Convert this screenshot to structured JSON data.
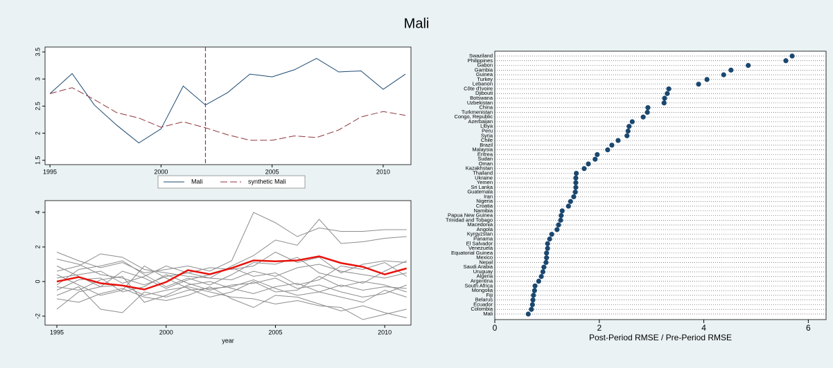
{
  "title": "Mali",
  "chart_data": [
    {
      "type": "line",
      "x": [
        1995,
        1996,
        1997,
        1998,
        1999,
        2000,
        2001,
        2002,
        2003,
        2004,
        2005,
        2006,
        2007,
        2008,
        2009,
        2010,
        2011
      ],
      "series": [
        {
          "name": "Mali",
          "color": "#1a476f",
          "dash": false,
          "values": [
            2.73,
            3.1,
            2.52,
            2.15,
            1.82,
            2.08,
            2.87,
            2.52,
            2.75,
            3.09,
            3.04,
            3.17,
            3.38,
            3.13,
            3.15,
            2.81,
            3.09
          ]
        },
        {
          "name": "synthetic Mali",
          "color": "#90353b",
          "dash": true,
          "values": [
            2.73,
            2.84,
            2.62,
            2.38,
            2.28,
            2.11,
            2.21,
            2.1,
            1.97,
            1.87,
            1.87,
            1.95,
            1.92,
            2.06,
            2.3,
            2.4,
            2.33
          ]
        }
      ],
      "vline": 2002,
      "vline_color": "#90353b",
      "xlim": [
        1994.78,
        2011.25
      ],
      "xticks": [
        1995,
        2000,
        2005,
        2010
      ],
      "ylim": [
        1.42,
        3.59
      ],
      "yticks": [
        1.5,
        2,
        2.5,
        3,
        3.5
      ],
      "legend": "bottom",
      "grid": false
    },
    {
      "type": "line",
      "x_label": "year",
      "x": [
        1995,
        1996,
        1997,
        1998,
        1999,
        2000,
        2001,
        2002,
        2003,
        2004,
        2005,
        2006,
        2007,
        2008,
        2009,
        2010,
        2011
      ],
      "series": [
        {
          "color": "#8c8c8c",
          "values": [
            1.7,
            1.2,
            0.8,
            1.1,
            0.5,
            0.7,
            0.9,
            0.6,
            1.2,
            4.0,
            3.4,
            2.6,
            3.1,
            2.9,
            2.9,
            3.0,
            3.0
          ]
        },
        {
          "color": "#8c8c8c",
          "values": [
            -1.6,
            -0.6,
            -0.3,
            -0.2,
            -0.8,
            -0.5,
            -0.3,
            -0.6,
            -0.9,
            -1.0,
            -1.3,
            -1.1,
            -1.4,
            -1.5,
            -2.2,
            -1.9,
            -1.6
          ]
        },
        {
          "color": "#8c8c8c",
          "values": [
            0.6,
            0.9,
            1.6,
            1.4,
            0.7,
            0.5,
            0.3,
            0.2,
            0.9,
            1.5,
            2.4,
            2.1,
            3.6,
            2.2,
            2.3,
            2.5,
            2.6
          ]
        },
        {
          "color": "#8c8c8c",
          "values": [
            -0.8,
            -0.3,
            -1.6,
            -1.8,
            -0.6,
            -0.9,
            -0.5,
            -0.4,
            -0.3,
            0.1,
            -0.4,
            -0.8,
            -0.6,
            -0.9,
            -1.2,
            -0.5,
            -0.9
          ]
        },
        {
          "color": "#8c8c8c",
          "values": [
            1.3,
            1.0,
            0.4,
            0.2,
            -0.2,
            0.3,
            0.5,
            0.8,
            0.7,
            0.9,
            1.7,
            1.1,
            1.4,
            0.5,
            1.0,
            1.2,
            1.1
          ]
        },
        {
          "color": "#8c8c8c",
          "values": [
            -0.3,
            -0.5,
            0.1,
            0.3,
            -1.2,
            -0.8,
            -0.2,
            0.0,
            -0.4,
            -0.7,
            -0.3,
            -0.1,
            -0.6,
            -0.2,
            -0.5,
            -0.3,
            -0.4
          ]
        },
        {
          "color": "#8c8c8c",
          "values": [
            0.2,
            0.4,
            0.6,
            -0.1,
            0.3,
            0.9,
            0.5,
            0.2,
            0.1,
            0.6,
            0.3,
            0.8,
            1.0,
            0.6,
            0.4,
            0.2,
            0.5
          ]
        },
        {
          "color": "#8c8c8c",
          "values": [
            -1.0,
            -1.2,
            -0.7,
            -0.4,
            -0.9,
            -1.1,
            -0.8,
            -0.3,
            -1.0,
            -1.5,
            -0.8,
            -0.9,
            -1.3,
            -1.7,
            -1.4,
            -1.8,
            -2.1
          ]
        },
        {
          "color": "#8c8c8c",
          "values": [
            0.9,
            0.3,
            -0.3,
            0.6,
            0.2,
            -0.4,
            0.1,
            0.4,
            0.8,
            0.3,
            0.5,
            -0.2,
            0.1,
            0.9,
            0.7,
            1.1,
            0.3
          ]
        },
        {
          "color": "#8c8c8c",
          "values": [
            -0.5,
            0.1,
            0.2,
            -0.6,
            -0.3,
            0.4,
            -0.1,
            -0.5,
            -0.2,
            -0.1,
            0.2,
            -0.4,
            -0.2,
            -0.6,
            -0.9,
            -0.7,
            -0.2
          ]
        },
        {
          "color": "#8c8c8c",
          "values": [
            0.4,
            -0.2,
            -0.8,
            -0.5,
            0.9,
            0.2,
            -0.4,
            -0.9,
            -0.6,
            0.0,
            -0.6,
            -0.5,
            0.3,
            -0.3,
            0.0,
            -0.2,
            -0.6
          ]
        },
        {
          "color": "#8c8c8c",
          "values": [
            -0.2,
            0.7,
            0.9,
            1.2,
            0.4,
            -0.3,
            0.2,
            -0.2,
            0.4,
            1.1,
            1.0,
            1.4,
            0.5,
            0.2,
            -0.1,
            0.6,
            1.2
          ]
        },
        {
          "color": "#e8120c",
          "width": 2.5,
          "values": [
            0,
            0.26,
            -0.1,
            -0.23,
            -0.46,
            -0.03,
            0.66,
            0.42,
            0.78,
            1.22,
            1.17,
            1.22,
            1.46,
            1.07,
            0.85,
            0.41,
            0.76
          ]
        }
      ],
      "xlim": [
        1994.46,
        2011.2
      ],
      "xticks": [
        1995,
        2000,
        2005,
        2010
      ],
      "ylim": [
        -2.52,
        4.68
      ],
      "yticks": [
        -2,
        0,
        2,
        4
      ],
      "legend": false,
      "grid": false
    },
    {
      "type": "dot",
      "x_label": "Post-Period RMSE / Pre-Period RMSE",
      "categories": [
        "Swaziland",
        "Philippines",
        "Gabon",
        "Gambia",
        "Guinea",
        "Turkey",
        "Lebanon",
        "Côte d'Ivoire",
        "Djibouti",
        "Botswana",
        "Uzbekistan",
        "China",
        "Turkmenistan",
        "Congo, Republic",
        "Azerbaijan",
        "Libya",
        "Peru",
        "Syria",
        "Chile",
        "Brazil",
        "Malaysia",
        "Eritrea",
        "Sudan",
        "Oman",
        "Kazakhstan",
        "Thailand",
        "Ukraine",
        "Yemen",
        "Sri Lanka",
        "Guatemala",
        "Iran",
        "Nigeria",
        "Croatia",
        "Namibia",
        "Papua New Guinea",
        "Trinidad and Tobago",
        "Macedonia",
        "Angola",
        "Kyrgyzstan",
        "Panama",
        "El Salvador",
        "Venezuela",
        "Equatorial Guinea",
        "Mexico",
        "Nepal",
        "Saudi Arabia",
        "Uruguay",
        "Algeria",
        "Argentina",
        "South Africa",
        "Mongolia",
        "Fiji",
        "Belarus",
        "Ecuador",
        "Colombia",
        "Mali"
      ],
      "values": [
        5.69,
        5.57,
        4.85,
        4.52,
        4.38,
        4.06,
        3.9,
        3.33,
        3.3,
        3.25,
        3.24,
        2.93,
        2.92,
        2.84,
        2.63,
        2.57,
        2.55,
        2.53,
        2.36,
        2.24,
        2.16,
        1.96,
        1.92,
        1.79,
        1.71,
        1.56,
        1.55,
        1.55,
        1.55,
        1.54,
        1.51,
        1.45,
        1.41,
        1.29,
        1.27,
        1.26,
        1.22,
        1.19,
        1.09,
        1.05,
        1.01,
        1.01,
        0.99,
        0.99,
        0.98,
        0.94,
        0.92,
        0.89,
        0.84,
        0.77,
        0.76,
        0.74,
        0.73,
        0.72,
        0.7,
        0.64
      ],
      "color": "#1a476f",
      "xlim": [
        0,
        6.34
      ],
      "xticks": [
        0,
        2,
        4,
        6
      ],
      "grid": true
    }
  ]
}
